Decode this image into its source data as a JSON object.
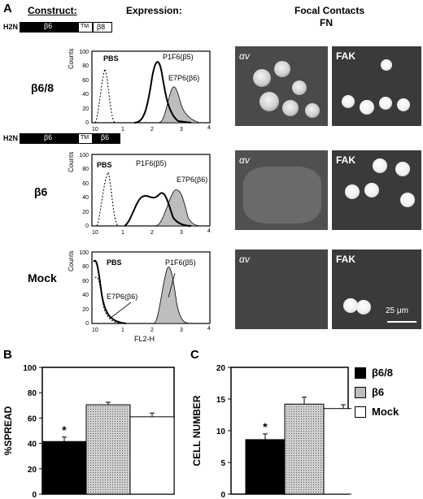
{
  "panel_a": {
    "letter": "A",
    "headers": {
      "construct": "Construct:",
      "expression": "Expression:",
      "focal": "Focal Contacts",
      "fn": "FN"
    },
    "construct_b68": {
      "h2n": "H2N",
      "b6": "β6",
      "tm": "TM",
      "b8": "β8"
    },
    "construct_b6": {
      "h2n": "H2N",
      "b6": "β6",
      "tm": "TM",
      "b6b": "β6"
    },
    "rows": [
      {
        "label": "β6/8",
        "flow": {
          "pbs": "PBS",
          "p1f6": "P1F6(β5)",
          "e7p6": "E7P6(β6)"
        },
        "av": "αv",
        "fak": "FAK"
      },
      {
        "label": "β6",
        "flow": {
          "pbs": "PBS",
          "p1f6": "P1F6(β5)",
          "e7p6": "E7P6(β6)"
        },
        "av": "αv",
        "fak": "FAK"
      },
      {
        "label": "Mock",
        "flow": {
          "pbs": "PBS",
          "p1f6": "P1F6(β5)",
          "e7p6": "E7P6(β6)"
        },
        "av": "αv",
        "fak": "FAK"
      }
    ],
    "flow_axis": {
      "ylabel": "Counts",
      "xlabel": "FL2-H",
      "yticks": [
        "0",
        "20",
        "40",
        "60",
        "80",
        "100"
      ],
      "xticks": [
        "10",
        "1",
        "2",
        "3",
        "4"
      ]
    },
    "scale_bar": "25 μm"
  },
  "legend": [
    {
      "label": "β6/8",
      "fill": "#000000"
    },
    {
      "label": "β6",
      "fill": "#bdbdbd"
    },
    {
      "label": "Mock",
      "fill": "#ffffff"
    }
  ],
  "chart_data": [
    {
      "panel": "B",
      "type": "bar",
      "categories": [
        "β6/8",
        "β6",
        "Mock"
      ],
      "values": [
        41.5,
        70.5,
        61
      ],
      "errors": [
        3.5,
        2,
        3
      ],
      "ylabel": "%SPREAD",
      "ylim": [
        0,
        100
      ],
      "yticks": [
        0,
        20,
        40,
        60,
        80,
        100
      ],
      "annotation": "*"
    },
    {
      "panel": "C",
      "type": "bar",
      "categories": [
        "β6/8",
        "β6",
        "Mock"
      ],
      "values": [
        8.6,
        14.2,
        13.5
      ],
      "errors": [
        0.9,
        1.1,
        0.6
      ],
      "ylabel": "CELL NUMBER",
      "ylim": [
        0,
        20
      ],
      "yticks": [
        0,
        5,
        10,
        15,
        20
      ],
      "annotation": "*"
    }
  ]
}
